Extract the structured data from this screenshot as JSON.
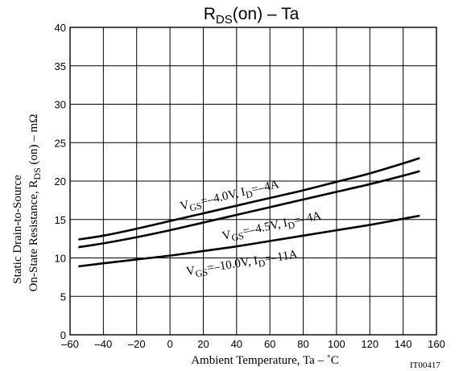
{
  "chart_data": {
    "type": "line",
    "title": {
      "main": "R",
      "sub": "DS",
      "rest": "(on)  –  Ta"
    },
    "xlabel": "Ambient Temperature, Ta  –  ˚C",
    "ylabel": {
      "line1": "Static Drain-to-Source",
      "line2_prefix": "On-State Resistance, R",
      "line2_sub": "DS",
      "line2_suffix": " (on)  –  mΩ"
    },
    "xlim": [
      -60,
      160
    ],
    "ylim": [
      0,
      40
    ],
    "xticks": [
      -60,
      -40,
      -20,
      0,
      20,
      40,
      60,
      80,
      100,
      120,
      140,
      160
    ],
    "yticks": [
      0,
      5,
      10,
      15,
      20,
      25,
      30,
      35,
      40
    ],
    "xtick_labels": [
      "–60",
      "–40",
      "–20",
      "0",
      "20",
      "40",
      "60",
      "80",
      "100",
      "120",
      "140",
      "160"
    ],
    "ytick_labels": [
      "0",
      "5",
      "10",
      "15",
      "20",
      "25",
      "30",
      "35",
      "40"
    ],
    "grid": true,
    "figure_id": "IT00417",
    "series": [
      {
        "label": {
          "v": "V",
          "vsub": "GS",
          "vval": "=–4.0V, I",
          "isub": "D",
          "ival": "=–4A"
        },
        "x": [
          -55,
          -40,
          -20,
          0,
          20,
          40,
          60,
          80,
          100,
          120,
          140,
          150
        ],
        "y": [
          12.4,
          12.9,
          13.8,
          14.8,
          15.8,
          16.8,
          17.8,
          18.8,
          19.9,
          21.0,
          22.3,
          23.0
        ]
      },
      {
        "label": {
          "v": "V",
          "vsub": "GS",
          "vval": "=–4.5V, I",
          "isub": "D",
          "ival": "=–4A"
        },
        "x": [
          -55,
          -40,
          -20,
          0,
          20,
          40,
          60,
          80,
          100,
          120,
          140,
          150
        ],
        "y": [
          11.4,
          11.9,
          12.7,
          13.6,
          14.6,
          15.6,
          16.6,
          17.6,
          18.6,
          19.6,
          20.7,
          21.3
        ]
      },
      {
        "label": {
          "v": "V",
          "vsub": "GS",
          "vval": "=–10.0V, I",
          "isub": "D",
          "ival": "=–11A"
        },
        "x": [
          -55,
          -40,
          -20,
          0,
          20,
          40,
          60,
          80,
          100,
          120,
          140,
          150
        ],
        "y": [
          8.9,
          9.3,
          9.8,
          10.3,
          10.9,
          11.5,
          12.2,
          12.9,
          13.6,
          14.3,
          15.1,
          15.5
        ]
      }
    ]
  }
}
